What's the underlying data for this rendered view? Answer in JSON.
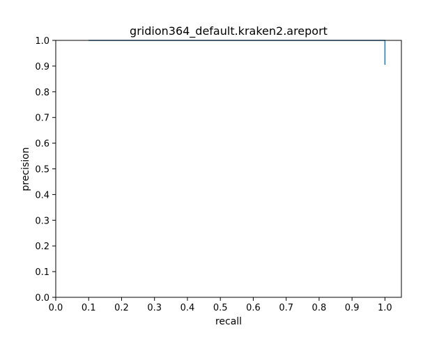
{
  "chart_data": {
    "type": "line",
    "title": "gridion364_default.kraken2.areport",
    "xlabel": "recall",
    "ylabel": "precision",
    "xlim": [
      0.0,
      1.05
    ],
    "ylim": [
      0.0,
      1.0
    ],
    "xticks": [
      0.0,
      0.1,
      0.2,
      0.3,
      0.4,
      0.5,
      0.6,
      0.7,
      0.8,
      0.9,
      1.0
    ],
    "xtick_labels": [
      "0.0",
      "0.1",
      "0.2",
      "0.3",
      "0.4",
      "0.5",
      "0.6",
      "0.7",
      "0.8",
      "0.9",
      "1.0"
    ],
    "yticks": [
      0.0,
      0.1,
      0.2,
      0.3,
      0.4,
      0.5,
      0.6,
      0.7,
      0.8,
      0.9,
      1.0
    ],
    "ytick_labels": [
      "0.0",
      "0.1",
      "0.2",
      "0.3",
      "0.4",
      "0.5",
      "0.6",
      "0.7",
      "0.8",
      "0.9",
      "1.0"
    ],
    "grid": false,
    "series": [
      {
        "color": "#1f77b4",
        "x": [
          0.1,
          1.0,
          1.0
        ],
        "y": [
          1.0,
          1.0,
          0.905
        ]
      }
    ]
  }
}
